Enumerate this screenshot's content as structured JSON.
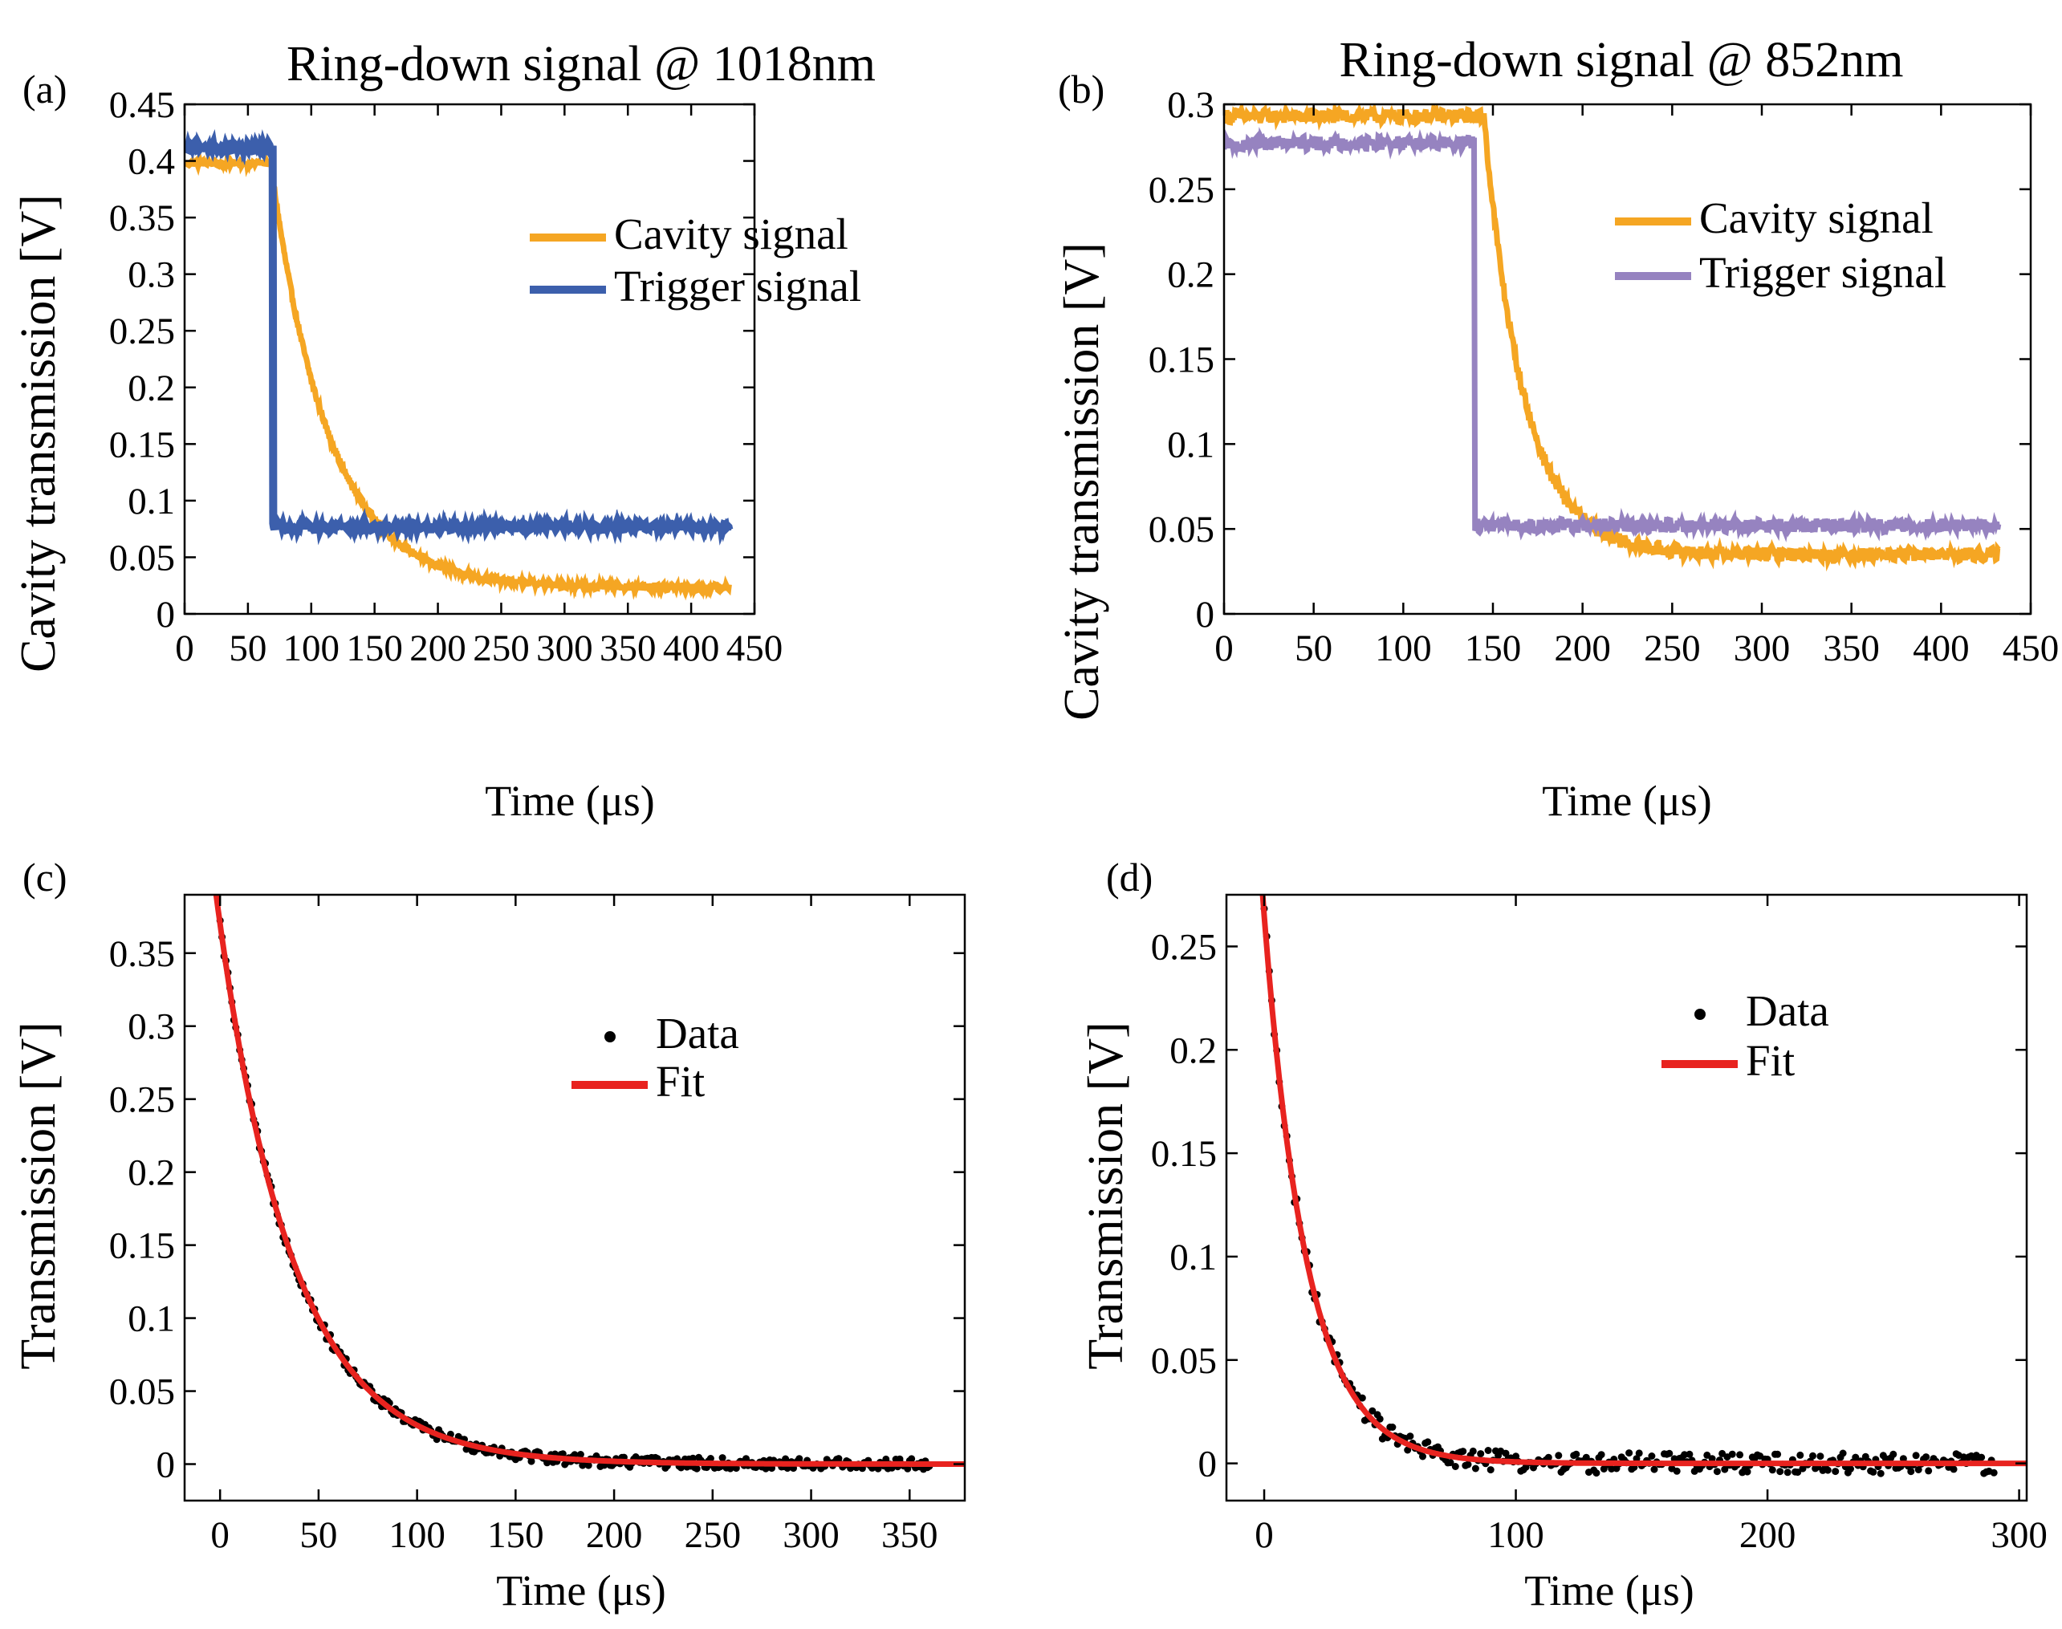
{
  "chart_data": [
    {
      "panel_label": "(a)",
      "type": "line",
      "title": "Ring-down signal @ 1018nm",
      "xlabel": "Time (μs)",
      "ylabel": "Cavity transmission  [V]",
      "xlim": [
        0,
        450
      ],
      "ylim": [
        0,
        0.45
      ],
      "xticks": [
        0,
        50,
        100,
        150,
        200,
        250,
        300,
        350,
        400,
        450
      ],
      "xtick_labels": [
        "0",
        "50",
        "100",
        "150",
        "200",
        "250",
        "300",
        "350",
        "400",
        "450"
      ],
      "yticks": [
        0,
        0.05,
        0.1,
        0.15,
        0.2,
        0.25,
        0.3,
        0.35,
        0.4,
        0.45
      ],
      "ytick_labels": [
        "0",
        "0.05",
        "0.1",
        "0.15",
        "0.2",
        "0.25",
        "0.3",
        "0.35",
        "0.4",
        "0.45"
      ],
      "legend_position": "upper-right",
      "series": [
        {
          "name": "Cavity signal",
          "color": "#f5a623",
          "model": {
            "kind": "step_then_decay",
            "t_start": 0,
            "t_switch": 68,
            "t_end": 430,
            "level_before": 0.398,
            "level_after": 0.023,
            "tau": 45,
            "noise": 0.003
          }
        },
        {
          "name": "Trigger signal",
          "color": "#3c5fac",
          "model": {
            "kind": "step",
            "t_start": 0,
            "t_switch": 70,
            "t_end": 430,
            "level_before": 0.412,
            "level_after": 0.077,
            "noise": 0.003
          }
        }
      ]
    },
    {
      "panel_label": "(b)",
      "type": "line",
      "title": "Ring-down signal @ 852nm",
      "xlabel": "Time (μs)",
      "ylabel": "Cavity transmission  [V]",
      "xlim": [
        0,
        450
      ],
      "ylim": [
        0,
        0.3
      ],
      "xticks": [
        0,
        50,
        100,
        150,
        200,
        250,
        300,
        350,
        400,
        450
      ],
      "xtick_labels": [
        "0",
        "50",
        "100",
        "150",
        "200",
        "250",
        "300",
        "350",
        "400",
        "450"
      ],
      "yticks": [
        0,
        0.05,
        0.1,
        0.15,
        0.2,
        0.25,
        0.3
      ],
      "ytick_labels": [
        "0",
        "0.05",
        "0.1",
        "0.15",
        "0.2",
        "0.25",
        "0.3"
      ],
      "legend_position": "upper-right",
      "series": [
        {
          "name": "Cavity signal",
          "color": "#f5a623",
          "model": {
            "kind": "step_then_decay",
            "t_start": 0,
            "t_switch": 145,
            "t_end": 432,
            "level_before": 0.293,
            "level_after": 0.035,
            "tau": 22,
            "noise": 0.004
          }
        },
        {
          "name": "Trigger signal",
          "color": "#9683c0",
          "model": {
            "kind": "step",
            "t_start": 0,
            "t_switch": 140,
            "t_end": 432,
            "level_before": 0.277,
            "level_after": 0.052,
            "noise": 0.004
          }
        }
      ]
    },
    {
      "panel_label": "(c)",
      "type": "scatter",
      "title": "",
      "xlabel": "Time (μs)",
      "ylabel": "Transmission  [V]",
      "xlim": [
        -18,
        378
      ],
      "ylim": [
        -0.025,
        0.39
      ],
      "xticks": [
        0,
        50,
        100,
        150,
        200,
        250,
        300,
        350
      ],
      "xtick_labels": [
        "0",
        "50",
        "100",
        "150",
        "200",
        "250",
        "300",
        "350"
      ],
      "yticks": [
        0,
        0.05,
        0.1,
        0.15,
        0.2,
        0.25,
        0.3,
        0.35
      ],
      "ytick_labels": [
        "0",
        "0.05",
        "0.1",
        "0.15",
        "0.2",
        "0.25",
        "0.3",
        "0.35"
      ],
      "legend_position": "upper-right",
      "series": [
        {
          "name": "Data",
          "color": "#000000",
          "marker": "dot",
          "model": {
            "kind": "decay",
            "t_start": 0,
            "t_end": 360,
            "amplitude": 0.37,
            "tau": 38,
            "offset": 0.0,
            "noise": 0.004
          }
        },
        {
          "name": "Fit",
          "color": "#e8231f",
          "model": {
            "kind": "decay",
            "t_start": -5,
            "t_end": 378,
            "amplitude": 0.37,
            "tau": 38,
            "offset": 0.0
          }
        }
      ]
    },
    {
      "panel_label": "(d)",
      "type": "scatter",
      "title": "",
      "xlabel": "Time (μs)",
      "ylabel": "Transmission  [V]",
      "xlim": [
        -15,
        303
      ],
      "ylim": [
        -0.018,
        0.275
      ],
      "xticks": [
        0,
        100,
        200,
        300
      ],
      "xtick_labels": [
        "0",
        "100",
        "200",
        "300"
      ],
      "yticks": [
        0,
        0.05,
        0.1,
        0.15,
        0.2,
        0.25
      ],
      "ytick_labels": [
        "0",
        "0.05",
        "0.1",
        "0.15",
        "0.2",
        "0.25"
      ],
      "legend_position": "upper-right",
      "series": [
        {
          "name": "Data",
          "color": "#000000",
          "marker": "dot",
          "model": {
            "kind": "decay",
            "t_start": 0,
            "t_end": 290,
            "amplitude": 0.265,
            "tau": 17,
            "offset": 0.0,
            "noise": 0.005
          }
        },
        {
          "name": "Fit",
          "color": "#e8231f",
          "model": {
            "kind": "decay",
            "t_start": -3,
            "t_end": 303,
            "amplitude": 0.265,
            "tau": 17,
            "offset": 0.0
          }
        }
      ]
    }
  ]
}
